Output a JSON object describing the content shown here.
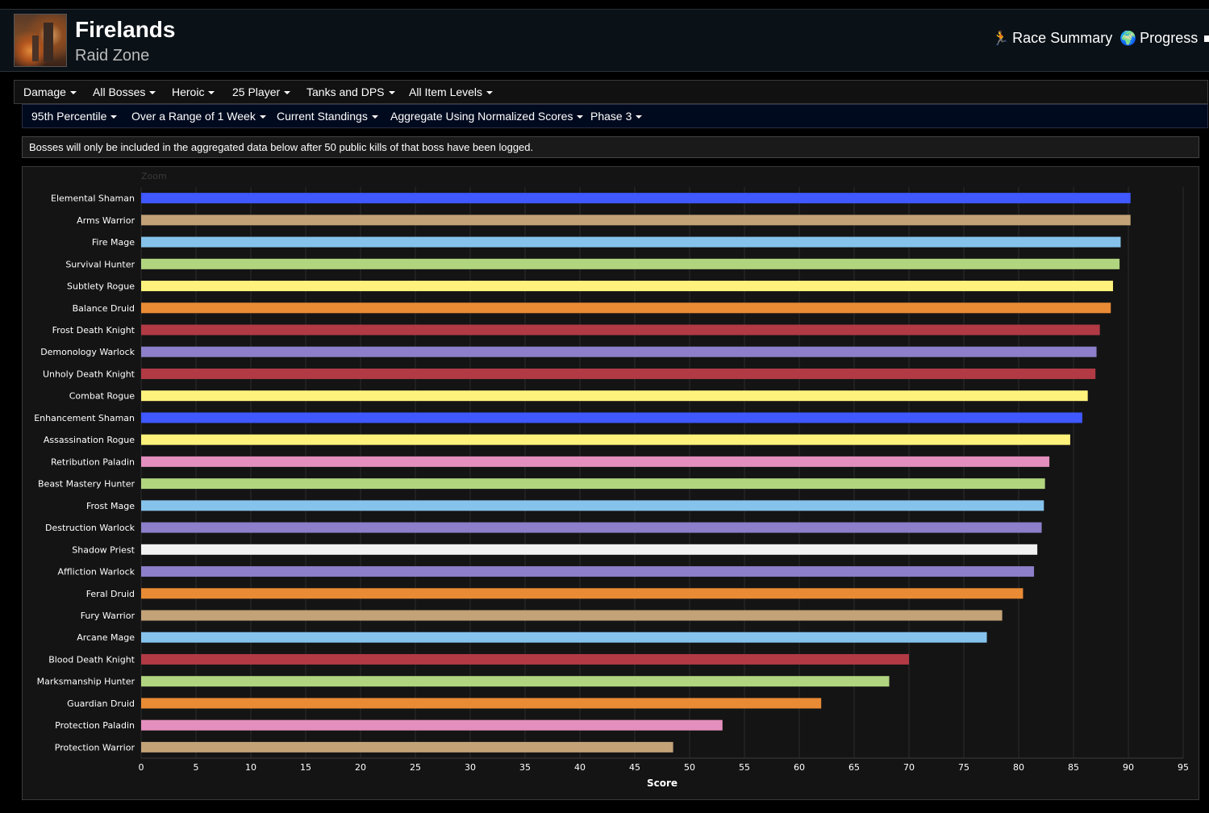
{
  "header": {
    "title": "Firelands",
    "subtitle": "Raid Zone",
    "nav": [
      {
        "label": "Race Summary",
        "icon": "runner-icon"
      },
      {
        "label": "Progress",
        "icon": "globe-icon"
      }
    ]
  },
  "filters_row1": [
    "Damage",
    "All Bosses",
    "Heroic",
    "25 Player",
    "Tanks and DPS",
    "All Item Levels"
  ],
  "filters_row2": [
    "95th Percentile",
    "Over a Range of 1 Week",
    "Current Standings",
    "Aggregate Using Normalized Scores",
    "Phase 3"
  ],
  "notice": "Bosses will only be included in the aggregated data below after 50 public kills of that boss have been logged.",
  "chart_data": {
    "type": "bar",
    "orientation": "horizontal",
    "zoom_label": "Zoom",
    "xlabel": "Score",
    "ylabel": "",
    "xlim": [
      0,
      95
    ],
    "xticks": [
      0,
      5,
      10,
      15,
      20,
      25,
      30,
      35,
      40,
      45,
      50,
      55,
      60,
      65,
      70,
      75,
      80,
      85,
      90,
      95
    ],
    "grid": true,
    "categories": [
      "Elemental Shaman",
      "Arms Warrior",
      "Fire Mage",
      "Survival Hunter",
      "Subtlety Rogue",
      "Balance Druid",
      "Frost Death Knight",
      "Demonology Warlock",
      "Unholy Death Knight",
      "Combat Rogue",
      "Enhancement Shaman",
      "Assassination Rogue",
      "Retribution Paladin",
      "Beast Mastery Hunter",
      "Frost Mage",
      "Destruction Warlock",
      "Shadow Priest",
      "Affliction Warlock",
      "Feral Druid",
      "Fury Warrior",
      "Arcane Mage",
      "Blood Death Knight",
      "Marksmanship Hunter",
      "Guardian Druid",
      "Protection Paladin",
      "Protection Warrior"
    ],
    "values": [
      90.2,
      90.2,
      89.3,
      89.2,
      88.6,
      88.4,
      87.4,
      87.1,
      87.0,
      86.3,
      85.8,
      84.7,
      82.8,
      82.4,
      82.3,
      82.1,
      81.7,
      81.4,
      80.4,
      78.5,
      77.1,
      70.0,
      68.2,
      62.0,
      53.0,
      48.5
    ],
    "colors": [
      "#3f58ff",
      "#c3a277",
      "#86c3ec",
      "#b1d57f",
      "#fff27c",
      "#e98b35",
      "#b13a45",
      "#8d7fc9",
      "#b13a45",
      "#fff27c",
      "#3f58ff",
      "#fff27c",
      "#e48fbd",
      "#b1d57f",
      "#86c3ec",
      "#8d7fc9",
      "#f2f2f2",
      "#8d7fc9",
      "#e98b35",
      "#c3a277",
      "#86c3ec",
      "#b13a45",
      "#b1d57f",
      "#e98b35",
      "#e48fbd",
      "#c3a277"
    ]
  }
}
